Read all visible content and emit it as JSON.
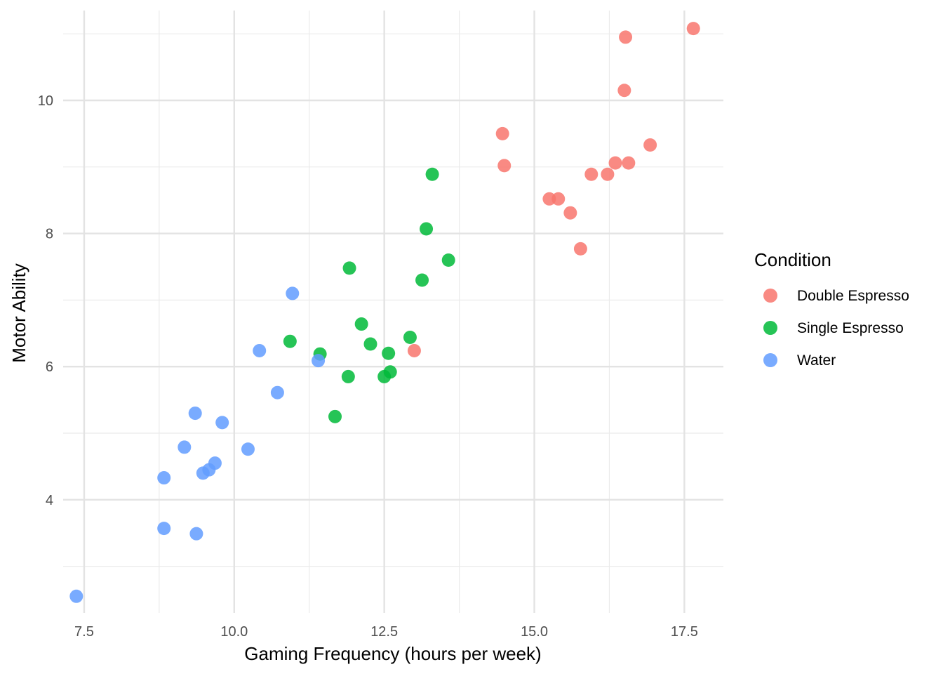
{
  "chart_data": {
    "type": "scatter",
    "title": "",
    "xlabel": "Gaming Frequency (hours per week)",
    "ylabel": "Motor Ability",
    "xlim": [
      7.15,
      18.15
    ],
    "ylim": [
      2.3,
      11.35
    ],
    "x_ticks": [
      7.5,
      10.0,
      12.5,
      15.0,
      17.5
    ],
    "x_tick_labels": [
      "7.5",
      "10.0",
      "12.5",
      "15.0",
      "17.5"
    ],
    "x_minor_ticks": [
      8.75,
      11.25,
      13.75,
      16.25
    ],
    "y_ticks": [
      4,
      6,
      8,
      10
    ],
    "y_tick_labels": [
      "4",
      "6",
      "8",
      "10"
    ],
    "y_minor_ticks": [
      3,
      5,
      7,
      9,
      11
    ],
    "grid": true,
    "legend_title": "Condition",
    "legend_position": "right",
    "series": [
      {
        "name": "Double Espresso",
        "color": "#F8766D",
        "points": [
          [
            17.65,
            11.08
          ],
          [
            16.52,
            10.95
          ],
          [
            16.5,
            10.15
          ],
          [
            16.93,
            9.33
          ],
          [
            14.47,
            9.5
          ],
          [
            14.5,
            9.02
          ],
          [
            16.35,
            9.06
          ],
          [
            16.57,
            9.06
          ],
          [
            15.95,
            8.89
          ],
          [
            16.22,
            8.89
          ],
          [
            15.25,
            8.52
          ],
          [
            15.4,
            8.52
          ],
          [
            15.6,
            8.31
          ],
          [
            15.77,
            7.77
          ],
          [
            13.0,
            6.24
          ]
        ]
      },
      {
        "name": "Single Espresso",
        "color": "#00BA38",
        "points": [
          [
            13.3,
            8.89
          ],
          [
            13.2,
            8.07
          ],
          [
            13.57,
            7.6
          ],
          [
            11.92,
            7.48
          ],
          [
            13.13,
            7.3
          ],
          [
            12.12,
            6.64
          ],
          [
            12.93,
            6.44
          ],
          [
            10.93,
            6.38
          ],
          [
            12.27,
            6.34
          ],
          [
            11.43,
            6.19
          ],
          [
            12.57,
            6.2
          ],
          [
            12.6,
            5.92
          ],
          [
            11.9,
            5.85
          ],
          [
            12.5,
            5.85
          ],
          [
            11.68,
            5.25
          ]
        ]
      },
      {
        "name": "Water",
        "color": "#619CFF",
        "points": [
          [
            10.97,
            7.1
          ],
          [
            10.42,
            6.24
          ],
          [
            11.4,
            6.09
          ],
          [
            10.72,
            5.61
          ],
          [
            9.35,
            5.3
          ],
          [
            9.8,
            5.16
          ],
          [
            9.17,
            4.79
          ],
          [
            10.23,
            4.76
          ],
          [
            9.68,
            4.55
          ],
          [
            9.58,
            4.45
          ],
          [
            9.48,
            4.4
          ],
          [
            8.83,
            4.33
          ],
          [
            8.83,
            3.57
          ],
          [
            9.37,
            3.49
          ],
          [
            7.37,
            2.55
          ]
        ]
      }
    ]
  }
}
